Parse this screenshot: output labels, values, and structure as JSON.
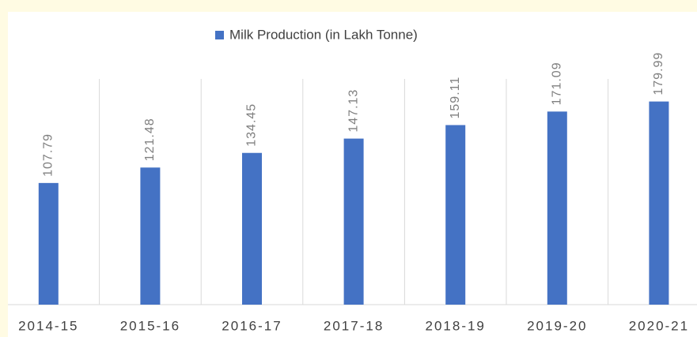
{
  "chart_data": {
    "type": "bar",
    "legend": "Milk Production (in Lakh Tonne)",
    "categories": [
      "2014-15",
      "2015-16",
      "2016-17",
      "2017-18",
      "2018-19",
      "2019-20",
      "2020-21"
    ],
    "values": [
      107.79,
      121.48,
      134.45,
      147.13,
      159.11,
      171.09,
      179.99
    ],
    "color": "#4472c4",
    "ylim": [
      0,
      200
    ],
    "grid": true
  }
}
